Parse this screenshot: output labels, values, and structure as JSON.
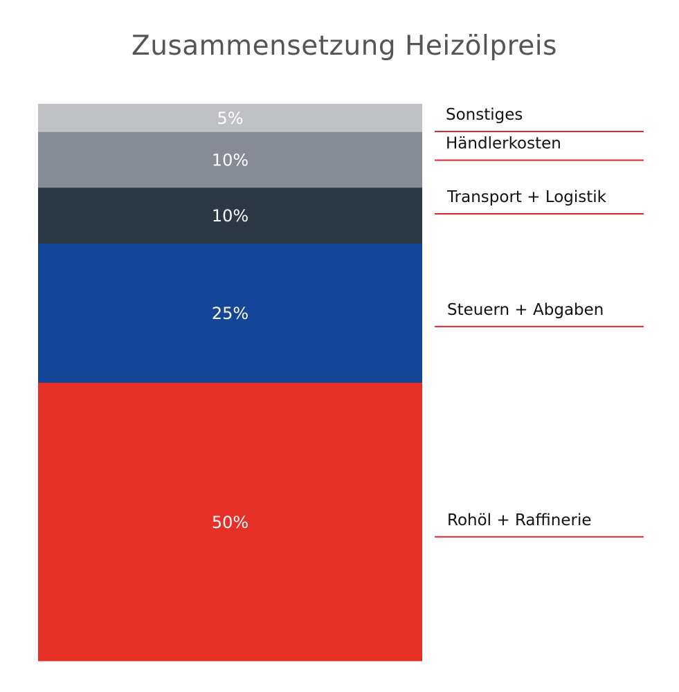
{
  "chart_data": {
    "type": "bar",
    "stacked": true,
    "title": "Zusammensetzung Heizölpreis",
    "unit": "%",
    "ylim": [
      0,
      100
    ],
    "grid": false,
    "legend_placement": "right",
    "segments": [
      {
        "name": "Rohöl + Raffinerie",
        "value": 50,
        "label": "50%",
        "color": "#e63027"
      },
      {
        "name": "Steuern + Abgaben",
        "value": 25,
        "label": "25%",
        "color": "#144598"
      },
      {
        "name": "Transport + Logistik",
        "value": 10,
        "label": "10%",
        "color": "#2d3845"
      },
      {
        "name": "Händlerkosten",
        "value": 10,
        "label": "10%",
        "color": "#878b95"
      },
      {
        "name": "Sonstiges",
        "value": 5,
        "label": "5%",
        "color": "#bfc1c4"
      }
    ],
    "leader_line_color": "#d9282f"
  }
}
